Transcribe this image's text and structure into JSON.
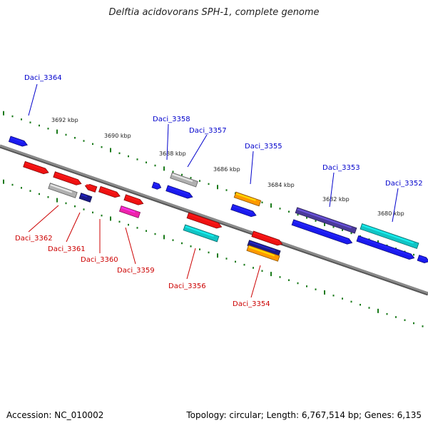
{
  "title": "Delftia acidovorans SPH-1, complete genome",
  "footer": {
    "accession": "Accession: NC_010002",
    "summary": "Topology: circular; Length: 6,767,514 bp; Genes: 6,135"
  },
  "colors": {
    "above_label": "#0000cc",
    "below_label": "#cc0000",
    "backbone": "#8a8a8a",
    "tick": "#1a7a1a"
  },
  "scale_ticks": [
    "3692 kbp",
    "3690 kbp",
    "3688 kbp",
    "3686 kbp",
    "3684 kbp",
    "3682 kbp",
    "3680 kbp"
  ],
  "genes_above": [
    "Daci_3364",
    "Daci_3358",
    "Daci_3357",
    "Daci_3355",
    "Daci_3353",
    "Daci_3352"
  ],
  "genes_below": [
    "Daci_3362",
    "Daci_3361",
    "Daci_3360",
    "Daci_3359",
    "Daci_3356",
    "Daci_3354"
  ]
}
